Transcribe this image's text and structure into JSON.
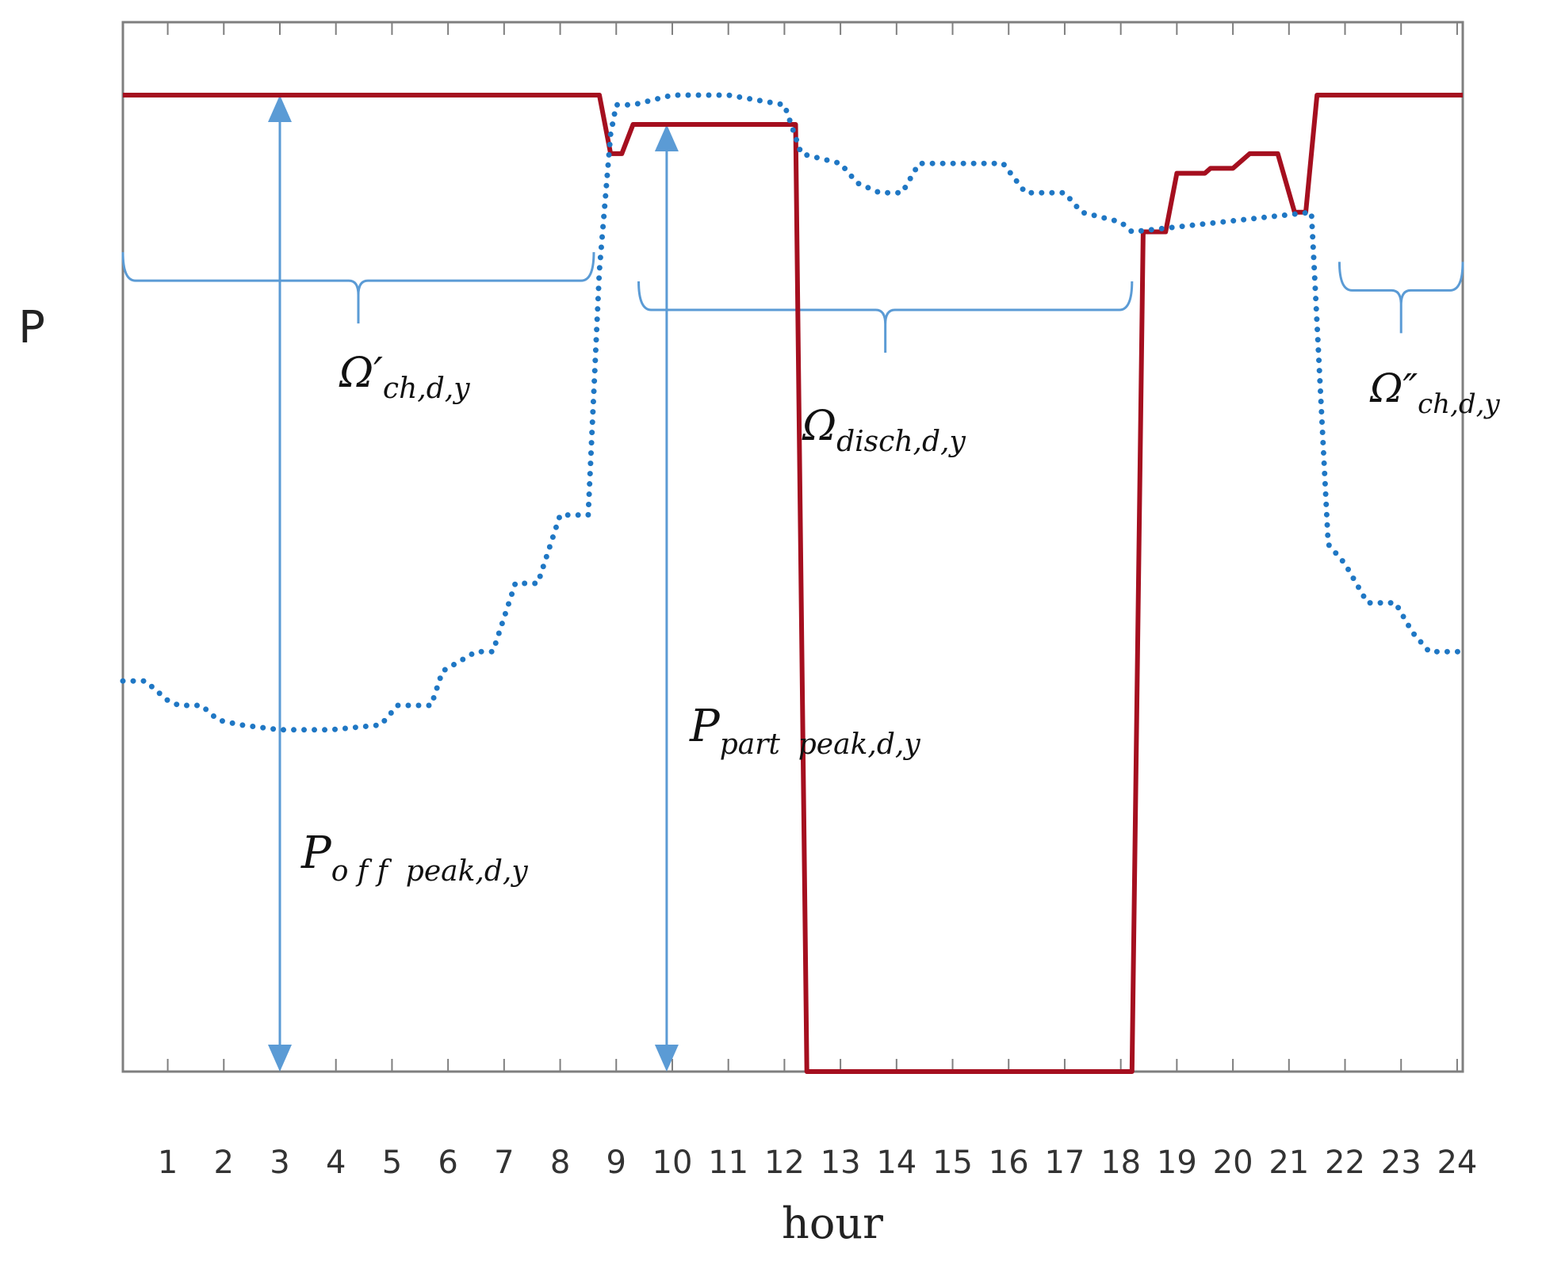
{
  "chart_data": {
    "type": "line",
    "xlabel": "hour",
    "ylabel": "P",
    "title": "",
    "x_ticks": [
      1,
      2,
      3,
      4,
      5,
      6,
      7,
      8,
      9,
      10,
      11,
      12,
      13,
      14,
      15,
      16,
      17,
      18,
      19,
      20,
      21,
      22,
      23,
      24
    ],
    "xlim": [
      0.2,
      24.1
    ],
    "ylim": [
      0,
      100
    ],
    "grid": false,
    "legend": "none",
    "colors": {
      "red_series": "#a50f1f",
      "blue_series": "#1f77c4",
      "annotation": "#5b9bd5"
    },
    "series": [
      {
        "style": "solid",
        "color": "#a50f1f",
        "x": [
          0.2,
          8.7,
          8.9,
          9.1,
          9.3,
          12.2,
          12.4,
          18.2,
          18.4,
          18.8,
          19.0,
          19.5,
          19.6,
          20.0,
          20.3,
          20.8,
          21.1,
          21.3,
          21.5,
          21.7,
          24.1
        ],
        "y": [
          100,
          100,
          94,
          94,
          97,
          97,
          0,
          0,
          86,
          86,
          92,
          92,
          92.5,
          92.5,
          94,
          94,
          88,
          88,
          100,
          100,
          100
        ]
      },
      {
        "style": "dotted",
        "color": "#1f77c4",
        "x": [
          0.2,
          0.6,
          1.0,
          1.2,
          1.6,
          1.9,
          2.3,
          3.0,
          3.9,
          4.8,
          5.1,
          5.7,
          5.9,
          6.5,
          6.8,
          7.2,
          7.6,
          8.0,
          8.5,
          8.7,
          8.9,
          9.0,
          9.3,
          10.0,
          11.0,
          12.0,
          12.3,
          13.0,
          13.3,
          13.7,
          14.1,
          14.4,
          15.0,
          15.9,
          16.3,
          17.0,
          17.3,
          18.0,
          18.2,
          21.4,
          21.7,
          22.0,
          22.4,
          22.9,
          23.2,
          23.5,
          24.1
        ],
        "y": [
          40,
          40,
          38,
          37.5,
          37.5,
          36,
          35.5,
          35,
          35,
          35.5,
          37.5,
          37.5,
          41,
          43,
          43,
          50,
          50,
          57,
          57,
          82,
          96,
          99,
          99,
          100,
          100,
          99,
          94,
          93,
          91,
          90,
          90,
          93,
          93,
          93,
          90,
          90,
          88,
          87,
          86,
          88,
          54,
          52,
          48,
          48,
          45,
          43,
          43
        ]
      }
    ],
    "annotations": {
      "arrows": [
        {
          "x": 3.0,
          "from": 0,
          "to": 100
        },
        {
          "x": 9.9,
          "from": 0,
          "to": 97
        }
      ],
      "braces": [
        {
          "x_start": 0.2,
          "x_end": 8.6,
          "y": 81
        },
        {
          "x_start": 9.4,
          "x_end": 18.2,
          "y": 78
        },
        {
          "x_start": 21.9,
          "x_end": 24.1,
          "y": 80
        }
      ],
      "labels": [
        {
          "base": "Ω′",
          "sub": "ch,d,y"
        },
        {
          "base": "Ω",
          "sub": "disch,d,y"
        },
        {
          "base": "Ω″",
          "sub": "ch,d,y"
        },
        {
          "base": "P",
          "sub": "part  peak,d,y"
        },
        {
          "base": "P",
          "sub": "o f f  peak,d,y"
        }
      ]
    }
  }
}
